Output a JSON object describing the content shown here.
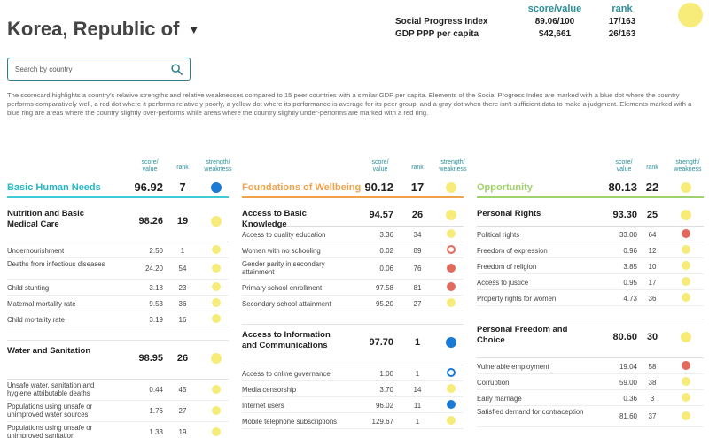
{
  "country": {
    "name": "Korea, Republic of"
  },
  "summary": {
    "head_score": "score/value",
    "head_rank": "rank",
    "rows": [
      {
        "label": "Social Progress Index",
        "value": "89.06/100",
        "rank": "17/163"
      },
      {
        "label": "GDP PPP per capita",
        "value": "$42,661",
        "rank": "26/163"
      }
    ]
  },
  "search": {
    "placeholder": "Search by country"
  },
  "description": "The scorecard highlights a country's relative strengths and relative weaknesses compared to 15 peer countries with a similar GDP per capita. Elements of the Social Progress Index are marked with a blue dot where the country performs comparatively well, a red dot where it performs relatively poorly, a yellow dot where its performance is average for its peer group, and a gray dot when there isn't sufficient data to make a judgment. Elements marked with a blue ring are areas where the country slightly over-performs while areas where the country slightly under-performs are marked with a red ring.",
  "col_headers": {
    "score": "score/\nvalue",
    "rank": "rank",
    "sw": "strength/\nweakness"
  },
  "colors": {
    "yellow": "#f7ec7a",
    "blue": "#1a7bd6",
    "red": "#e26a5c",
    "teal": "#25b7c7",
    "orange": "#f0a24a",
    "green": "#9ed26a"
  },
  "dimensions": [
    {
      "name": "Basic Human Needs",
      "score": "96.92",
      "rank": "7",
      "dot": "b",
      "components": [
        {
          "name": "Nutrition and Basic Medical Care",
          "score": "98.26",
          "rank": "19",
          "dot": "y",
          "indicators": [
            {
              "name": "Undernourishment",
              "score": "2.50",
              "rank": "1",
              "dot": "y"
            },
            {
              "name": "Deaths from infectious diseases",
              "score": "24.20",
              "rank": "54",
              "dot": "y"
            },
            {
              "name": "Child stunting",
              "score": "3.18",
              "rank": "23",
              "dot": "y"
            },
            {
              "name": "Maternal mortality rate",
              "score": "9.53",
              "rank": "36",
              "dot": "y"
            },
            {
              "name": "Child mortality rate",
              "score": "3.19",
              "rank": "16",
              "dot": "y"
            }
          ]
        },
        {
          "name": "Water and Sanitation",
          "score": "98.95",
          "rank": "26",
          "dot": "y",
          "indicators": [
            {
              "name": "Unsafe water, sanitation and hygiene attributable deaths",
              "score": "0.44",
              "rank": "45",
              "dot": "y"
            },
            {
              "name": "Populations using unsafe or unimproved water sources",
              "score": "1.76",
              "rank": "27",
              "dot": "y"
            },
            {
              "name": "Populations using unsafe or unimproved sanitation",
              "score": "1.33",
              "rank": "19",
              "dot": "y"
            }
          ]
        }
      ]
    },
    {
      "name": "Foundations of Wellbeing",
      "score": "90.12",
      "rank": "17",
      "dot": "y",
      "components": [
        {
          "name": "Access to Basic Knowledge",
          "score": "94.57",
          "rank": "26",
          "dot": "y",
          "indicators": [
            {
              "name": "Access to quality education",
              "score": "3.36",
              "rank": "34",
              "dot": "y"
            },
            {
              "name": "Women with no schooling",
              "score": "0.02",
              "rank": "89",
              "dot": "ringr"
            },
            {
              "name": "Gender parity in secondary attainment",
              "score": "0.06",
              "rank": "76",
              "dot": "r"
            },
            {
              "name": "Primary school enrollment",
              "score": "97.58",
              "rank": "81",
              "dot": "r"
            },
            {
              "name": "Secondary school attainment",
              "score": "95.20",
              "rank": "27",
              "dot": "y"
            }
          ]
        },
        {
          "name": "Access to Information and Communications",
          "score": "97.70",
          "rank": "1",
          "dot": "b",
          "indicators": [
            {
              "name": "Access to online governance",
              "score": "1.00",
              "rank": "1",
              "dot": "ringb"
            },
            {
              "name": "Media censorship",
              "score": "3.70",
              "rank": "14",
              "dot": "y"
            },
            {
              "name": "Internet users",
              "score": "96.02",
              "rank": "11",
              "dot": "b"
            },
            {
              "name": "Mobile telephone subscriptions",
              "score": "129.67",
              "rank": "1",
              "dot": "y"
            }
          ]
        }
      ]
    },
    {
      "name": "Opportunity",
      "score": "80.13",
      "rank": "22",
      "dot": "y",
      "components": [
        {
          "name": "Personal Rights",
          "score": "93.30",
          "rank": "25",
          "dot": "y",
          "indicators": [
            {
              "name": "Political rights",
              "score": "33.00",
              "rank": "64",
              "dot": "r"
            },
            {
              "name": "Freedom of expression",
              "score": "0.96",
              "rank": "12",
              "dot": "y"
            },
            {
              "name": "Freedom of religion",
              "score": "3.85",
              "rank": "10",
              "dot": "y"
            },
            {
              "name": "Access to justice",
              "score": "0.95",
              "rank": "17",
              "dot": "y"
            },
            {
              "name": "Property rights for women",
              "score": "4.73",
              "rank": "36",
              "dot": "y"
            }
          ]
        },
        {
          "name": "Personal Freedom and Choice",
          "score": "80.60",
          "rank": "30",
          "dot": "y",
          "indicators": [
            {
              "name": "Vulnerable employment",
              "score": "19.04",
              "rank": "58",
              "dot": "r"
            },
            {
              "name": "Corruption",
              "score": "59.00",
              "rank": "38",
              "dot": "y"
            },
            {
              "name": "Early marriage",
              "score": "0.36",
              "rank": "3",
              "dot": "y"
            },
            {
              "name": "Satisfied demand for contraception",
              "score": "81.60",
              "rank": "37",
              "dot": "y"
            }
          ]
        }
      ]
    }
  ]
}
